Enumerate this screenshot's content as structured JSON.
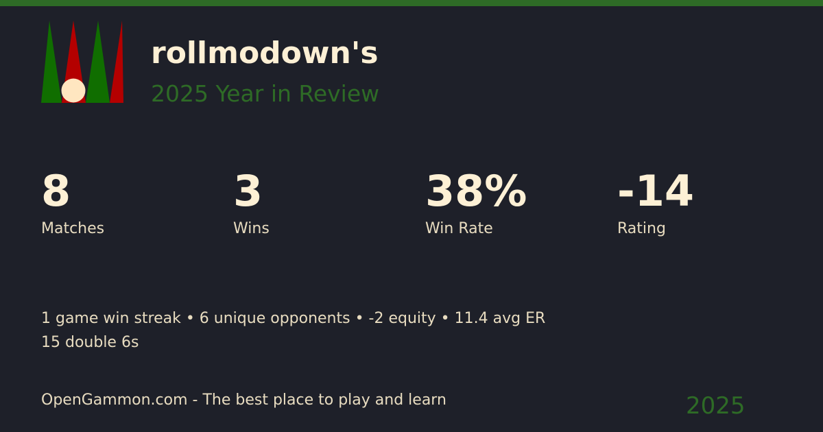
{
  "colors": {
    "accent": "#2e6b26",
    "background": "#1e2029",
    "text": "#fdf0d5",
    "logo_green": "#106e00",
    "logo_red": "#b40000",
    "checker": "#ffe6c0"
  },
  "header": {
    "title": "rollmodown's",
    "subtitle": "2025 Year in Review"
  },
  "stats": [
    {
      "value": "8",
      "label": "Matches"
    },
    {
      "value": "3",
      "label": "Wins"
    },
    {
      "value": "38%",
      "label": "Win Rate"
    },
    {
      "value": "-14",
      "label": "Rating"
    }
  ],
  "details": {
    "line1": "1 game win streak • 6 unique opponents • -2 equity • 11.4 avg ER",
    "line2": "15 double 6s"
  },
  "footer": {
    "tagline": "OpenGammon.com - The best place to play and learn",
    "year": "2025"
  }
}
